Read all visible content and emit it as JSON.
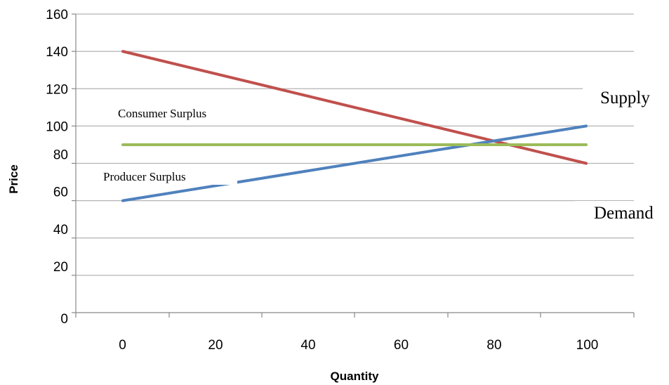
{
  "chart_data": {
    "type": "line",
    "xlabel": "Quantity",
    "ylabel": "Price",
    "x_ticks": [
      "0",
      "20",
      "40",
      "60",
      "80",
      "100"
    ],
    "y_ticks": [
      "0",
      "20",
      "40",
      "60",
      "80",
      "100",
      "120",
      "140",
      "160"
    ],
    "xlim": [
      0,
      100
    ],
    "ylim": [
      0,
      160
    ],
    "grid": true,
    "series": [
      {
        "name": "Demand",
        "color": "#c0504d",
        "x": [
          0,
          100
        ],
        "y": [
          140,
          80
        ]
      },
      {
        "name": "Supply",
        "color": "#4f81bd",
        "x": [
          0,
          100
        ],
        "y": [
          60,
          100
        ]
      },
      {
        "name": "",
        "color": "#9bbb59",
        "x": [
          0,
          100
        ],
        "y": [
          90,
          90
        ]
      }
    ],
    "annotations": {
      "consumer_surplus": "Consumer Surplus",
      "producer_surplus": "Producer Surplus",
      "supply": "Supply",
      "demand": "Demand"
    }
  }
}
